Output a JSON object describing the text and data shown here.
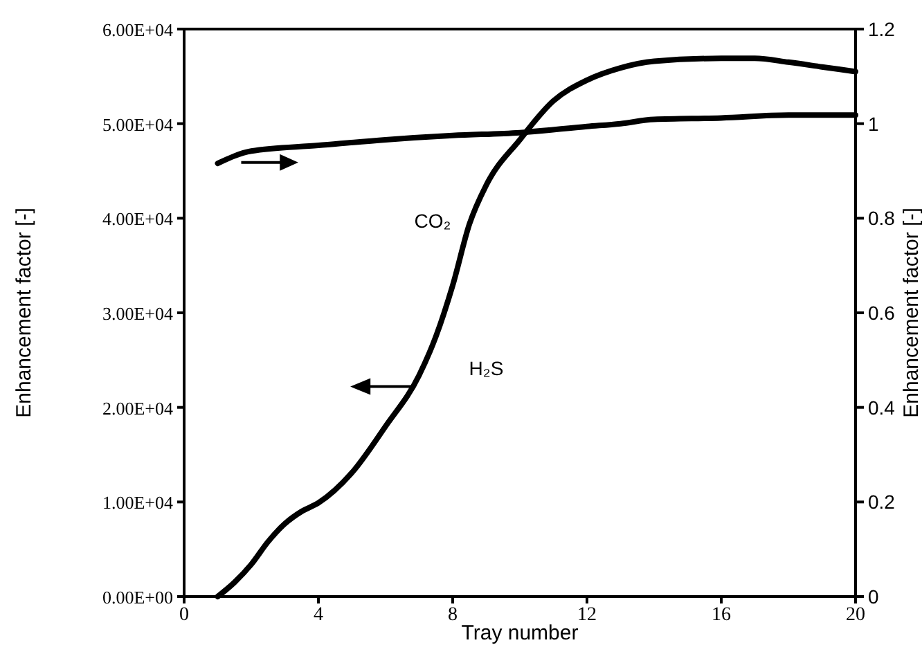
{
  "chart_data": {
    "type": "line",
    "xlabel": "Tray number",
    "ylabel": "Enhancement factor [-]",
    "y2label": "Enhancement factor [-]",
    "xlim": [
      0,
      20
    ],
    "xticks": [
      0,
      4,
      8,
      12,
      16,
      20
    ],
    "ylim": [
      0,
      60000
    ],
    "yticks": [
      {
        "value": 0,
        "label": "0.00E+00"
      },
      {
        "value": 10000,
        "label": "1.00E+04"
      },
      {
        "value": 20000,
        "label": "2.00E+04"
      },
      {
        "value": 30000,
        "label": "3.00E+04"
      },
      {
        "value": 40000,
        "label": "4.00E+04"
      },
      {
        "value": 50000,
        "label": "5.00E+04"
      },
      {
        "value": 60000,
        "label": "6.00E+04"
      }
    ],
    "y2lim": [
      0,
      1.2
    ],
    "y2ticks": [
      0,
      0.2,
      0.4,
      0.6,
      0.8,
      1,
      1.2
    ],
    "grid": false,
    "marker": "none",
    "line_style": "solid",
    "series": [
      {
        "color": "#000000",
        "x": [
          1,
          1.5,
          2,
          2.5,
          3,
          3.5,
          4,
          5,
          6,
          7,
          7.5,
          8,
          8.5,
          9,
          10,
          11,
          12,
          13,
          14,
          16,
          17,
          18,
          19,
          20
        ],
        "values": [
          0,
          1500,
          3400,
          5800,
          7700,
          9000,
          9900,
          13100,
          18000,
          23400,
          27500,
          32900,
          39400,
          43500,
          48300,
          52400,
          54600,
          55900,
          56600,
          56900,
          56900,
          56500,
          56000,
          55500
        ]
      },
      {
        "color": "#000000",
        "axis": "y2",
        "x": [
          1,
          2,
          4,
          6,
          8,
          10,
          12,
          13,
          14,
          16,
          18,
          20
        ],
        "values": [
          0.916,
          0.942,
          0.954,
          0.966,
          0.975,
          0.981,
          0.994,
          1.0,
          1.009,
          1.012,
          1.018,
          1.018
        ]
      }
    ],
    "annotations": [
      "CO₂",
      "H₂S"
    ]
  }
}
